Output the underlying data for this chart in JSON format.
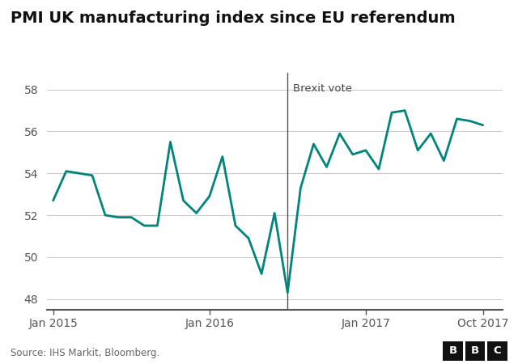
{
  "title": "PMI UK manufacturing index since EU referendum",
  "source": "Source: IHS Markit, Bloomberg.",
  "line_color": "#00857C",
  "background_color": "#ffffff",
  "brexit_label": "Brexit vote",
  "x_tick_labels": [
    "Jan 2015",
    "Jan 2016",
    "Jan 2017",
    "Oct 2017"
  ],
  "x_tick_positions": [
    0,
    12,
    24,
    33
  ],
  "y_ticks": [
    48,
    50,
    52,
    54,
    56,
    58
  ],
  "ylim": [
    47.5,
    58.8
  ],
  "xlim": [
    -0.5,
    34.5
  ],
  "data": [
    {
      "month": 0,
      "value": 52.7
    },
    {
      "month": 1,
      "value": 54.1
    },
    {
      "month": 2,
      "value": 54.0
    },
    {
      "month": 3,
      "value": 53.9
    },
    {
      "month": 4,
      "value": 52.0
    },
    {
      "month": 5,
      "value": 51.9
    },
    {
      "month": 6,
      "value": 51.9
    },
    {
      "month": 7,
      "value": 51.5
    },
    {
      "month": 8,
      "value": 51.5
    },
    {
      "month": 9,
      "value": 55.5
    },
    {
      "month": 10,
      "value": 52.7
    },
    {
      "month": 11,
      "value": 52.1
    },
    {
      "month": 12,
      "value": 52.9
    },
    {
      "month": 13,
      "value": 54.8
    },
    {
      "month": 14,
      "value": 51.5
    },
    {
      "month": 15,
      "value": 50.9
    },
    {
      "month": 16,
      "value": 49.2
    },
    {
      "month": 17,
      "value": 52.1
    },
    {
      "month": 18,
      "value": 48.3
    },
    {
      "month": 19,
      "value": 53.3
    },
    {
      "month": 20,
      "value": 55.4
    },
    {
      "month": 21,
      "value": 54.3
    },
    {
      "month": 22,
      "value": 55.9
    },
    {
      "month": 23,
      "value": 54.9
    },
    {
      "month": 24,
      "value": 55.1
    },
    {
      "month": 25,
      "value": 54.2
    },
    {
      "month": 26,
      "value": 56.9
    },
    {
      "month": 27,
      "value": 57.0
    },
    {
      "month": 28,
      "value": 55.1
    },
    {
      "month": 29,
      "value": 55.9
    },
    {
      "month": 30,
      "value": 54.6
    },
    {
      "month": 31,
      "value": 56.6
    },
    {
      "month": 32,
      "value": 56.5
    },
    {
      "month": 33,
      "value": 56.3
    }
  ],
  "brexit_month": 18.0
}
